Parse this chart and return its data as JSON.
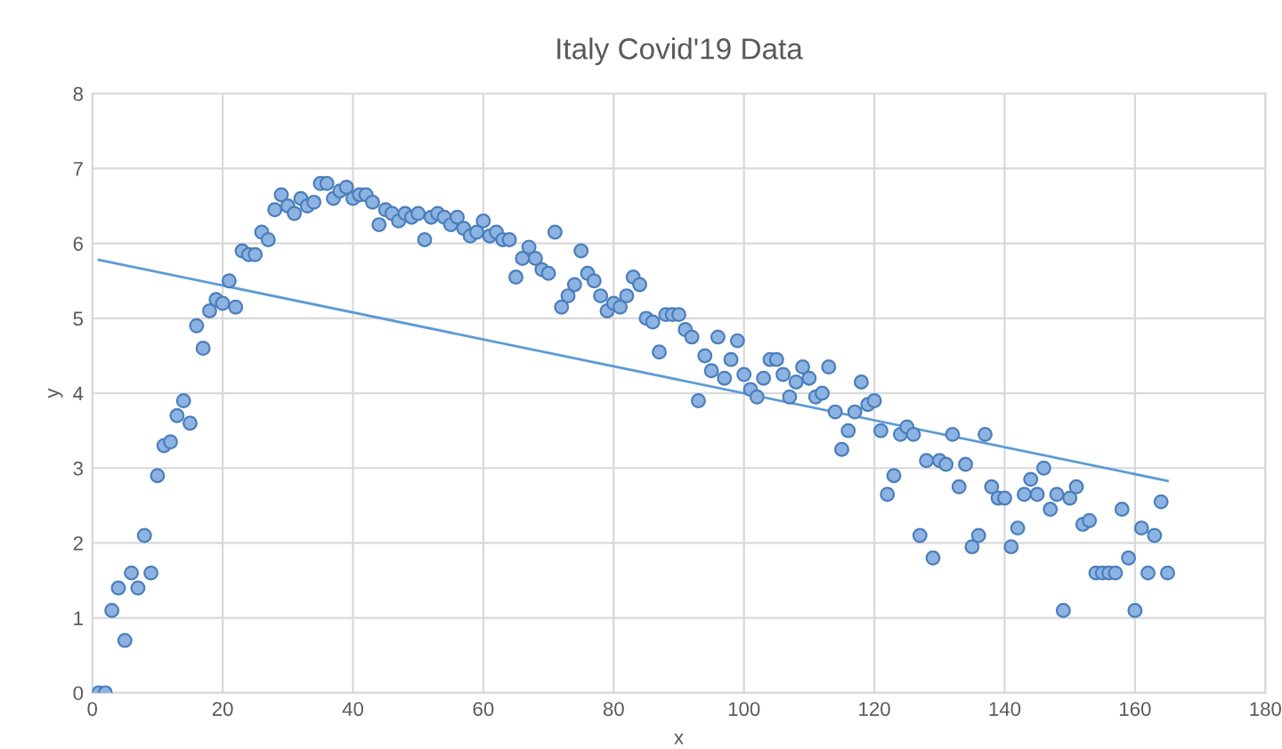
{
  "chart_data": {
    "type": "scatter",
    "title": "Italy Covid'19 Data",
    "xlabel": "x",
    "ylabel": "y",
    "xlim": [
      0,
      180
    ],
    "xticks": [
      0,
      20,
      40,
      60,
      80,
      100,
      120,
      140,
      160,
      180
    ],
    "ylim": [
      0,
      8
    ],
    "yticks": [
      0,
      1,
      2,
      3,
      4,
      5,
      6,
      7,
      8
    ],
    "grid": true,
    "series": [
      {
        "marker": "circle",
        "color": "#8db3e2",
        "x": [
          1,
          2,
          3,
          4,
          5,
          6,
          7,
          8,
          9,
          10,
          11,
          12,
          13,
          14,
          15,
          16,
          17,
          18,
          19,
          20,
          21,
          22,
          23,
          24,
          25,
          26,
          27,
          28,
          29,
          30,
          31,
          32,
          33,
          34,
          35,
          36,
          37,
          38,
          39,
          40,
          41,
          42,
          43,
          44,
          45,
          46,
          47,
          48,
          49,
          50,
          51,
          52,
          53,
          54,
          55,
          56,
          57,
          58,
          59,
          60,
          61,
          62,
          63,
          64,
          65,
          66,
          67,
          68,
          69,
          70,
          71,
          72,
          73,
          74,
          75,
          76,
          77,
          78,
          79,
          80,
          81,
          82,
          83,
          84,
          85,
          86,
          87,
          88,
          89,
          90,
          91,
          92,
          93,
          94,
          95,
          96,
          97,
          98,
          99,
          100,
          101,
          102,
          103,
          104,
          105,
          106,
          107,
          108,
          109,
          110,
          111,
          112,
          113,
          114,
          115,
          116,
          117,
          118,
          119,
          120,
          121,
          122,
          123,
          124,
          125,
          126,
          127,
          128,
          129,
          130,
          131,
          132,
          133,
          134,
          135,
          136,
          137,
          138,
          139,
          140,
          141,
          142,
          143,
          144,
          145,
          146,
          147,
          148,
          149,
          150,
          151,
          152,
          153,
          154,
          155,
          156,
          157,
          158,
          159,
          160,
          161,
          162,
          163,
          164,
          165
        ],
        "values": [
          0,
          0,
          1.1,
          1.4,
          0.7,
          1.6,
          1.4,
          2.1,
          1.6,
          2.9,
          3.3,
          3.35,
          3.7,
          3.9,
          3.6,
          4.9,
          4.6,
          5.1,
          5.25,
          5.2,
          5.5,
          5.15,
          5.9,
          5.85,
          5.85,
          6.15,
          6.05,
          6.45,
          6.65,
          6.5,
          6.4,
          6.6,
          6.5,
          6.55,
          6.8,
          6.8,
          6.6,
          6.7,
          6.75,
          6.6,
          6.65,
          6.65,
          6.55,
          6.25,
          6.45,
          6.4,
          6.3,
          6.4,
          6.35,
          6.4,
          6.05,
          6.35,
          6.4,
          6.35,
          6.25,
          6.35,
          6.2,
          6.1,
          6.15,
          6.3,
          6.1,
          6.15,
          6.05,
          6.05,
          5.55,
          5.8,
          5.95,
          5.8,
          5.65,
          5.6,
          6.15,
          5.15,
          5.3,
          5.45,
          5.9,
          5.6,
          5.5,
          5.3,
          5.1,
          5.2,
          5.15,
          5.3,
          5.55,
          5.45,
          5.0,
          4.95,
          4.55,
          5.05,
          5.05,
          5.05,
          4.85,
          4.75,
          3.9,
          4.5,
          4.3,
          4.75,
          4.2,
          4.45,
          4.7,
          4.25,
          4.05,
          3.95,
          4.2,
          4.45,
          4.45,
          4.25,
          3.95,
          4.15,
          4.35,
          4.2,
          3.95,
          4.0,
          4.35,
          3.75,
          3.25,
          3.5,
          3.75,
          4.15,
          3.85,
          3.9,
          3.5,
          2.65,
          2.9,
          3.45,
          3.55,
          3.45,
          2.1,
          3.1,
          1.8,
          3.1,
          3.05,
          3.45,
          2.75,
          3.05,
          1.95,
          2.1,
          3.45,
          2.75,
          2.6,
          2.6,
          1.95,
          2.2,
          2.65,
          2.85,
          2.65,
          3.0,
          2.45,
          2.65,
          1.1,
          2.6,
          2.75,
          2.25,
          2.3,
          1.6,
          1.6,
          1.6,
          1.6,
          2.45,
          1.8,
          1.1,
          2.2,
          1.6,
          2.1,
          2.55,
          1.6
        ]
      },
      {
        "type": "line",
        "marker": "none",
        "line_style": "solid",
        "color": "#5b9bd5",
        "x": [
          1,
          165
        ],
        "values": [
          5.78,
          2.83
        ]
      }
    ]
  }
}
